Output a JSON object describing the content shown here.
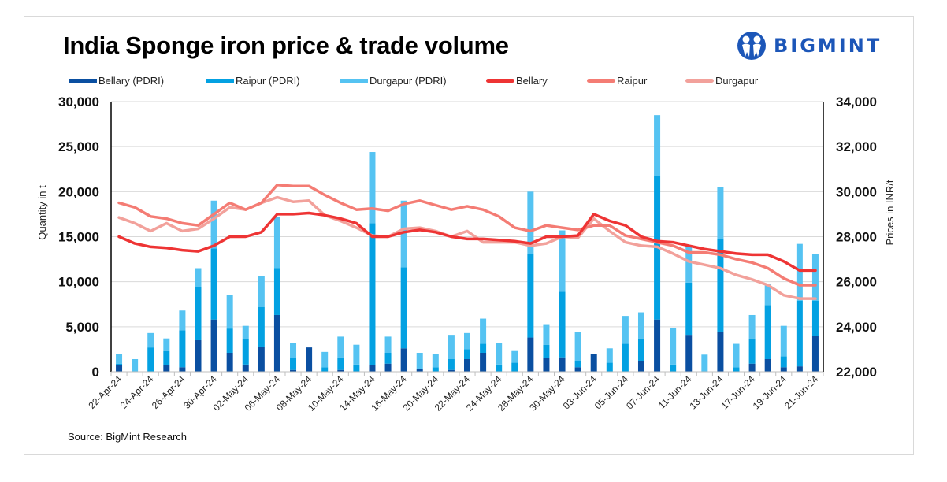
{
  "header": {
    "title": "India Sponge iron price & trade volume",
    "brand": "BIGMINT"
  },
  "source": "Source: BigMint Research",
  "chart_data": {
    "type": "bar+line",
    "title": "India Sponge iron price & trade volume",
    "ylabel": "Quantity in t",
    "y2label": "Prices in INR/t",
    "ylim": [
      0,
      30000
    ],
    "y2lim": [
      22000,
      34000
    ],
    "yticks": [
      "0",
      "5,000",
      "10,000",
      "15,000",
      "20,000",
      "25,000",
      "30,000"
    ],
    "y2ticks": [
      "22,000",
      "24,000",
      "26,000",
      "28,000",
      "30,000",
      "32,000",
      "34,000"
    ],
    "grid": true,
    "legend_position": "top",
    "colors": {
      "bellary_pdri": "#0a4fa1",
      "raipur_pdri": "#03a1e2",
      "durgapur_pdri": "#55c3f2",
      "bellary": "#ee3434",
      "raipur": "#f47c74",
      "durgapur": "#f2a19b"
    },
    "x_tick_labels": [
      "22-Apr-24",
      "24-Apr-24",
      "26-Apr-24",
      "30-Apr-24",
      "02-May-24",
      "06-May-24",
      "08-May-24",
      "10-May-24",
      "14-May-24",
      "16-May-24",
      "20-May-24",
      "22-May-24",
      "24-May-24",
      "28-May-24",
      "30-May-24",
      "03-Jun-24",
      "05-Jun-24",
      "07-Jun-24",
      "11-Jun-24",
      "13-Jun-24",
      "17-Jun-24",
      "19-Jun-24",
      "21-Jun-24"
    ],
    "bar_series": [
      {
        "name": "Bellary (PDRI)",
        "key": "bellary_pdri",
        "values": [
          700,
          0,
          0,
          700,
          500,
          3500,
          5800,
          2100,
          800,
          2800,
          6300,
          200,
          2700,
          0,
          200,
          0,
          700,
          900,
          2600,
          300,
          0,
          200,
          1400,
          2100,
          0,
          0,
          3800,
          1500,
          1600,
          500,
          2000,
          0,
          0,
          1200,
          5800,
          0,
          4100,
          0,
          4400,
          0,
          900,
          1400,
          500,
          600,
          4000
        ]
      },
      {
        "name": "Raipur (PDRI)",
        "key": "raipur_pdri",
        "values": [
          200,
          0,
          2700,
          1600,
          4100,
          5900,
          7900,
          2700,
          2800,
          4400,
          5200,
          1300,
          0,
          500,
          1400,
          800,
          15800,
          1200,
          9000,
          0,
          500,
          1200,
          1100,
          1000,
          800,
          1000,
          9300,
          1500,
          7300,
          700,
          0,
          1000,
          3100,
          2500,
          15900,
          800,
          5800,
          0,
          10300,
          500,
          2800,
          6000,
          1200,
          7300,
          3900
        ]
      },
      {
        "name": "Durgapur (PDRI)",
        "key": "durgapur_pdri",
        "values": [
          1100,
          1400,
          1600,
          1400,
          2200,
          2100,
          5300,
          3700,
          1500,
          3400,
          5700,
          1700,
          0,
          1700,
          2300,
          2200,
          7900,
          1800,
          7400,
          1800,
          1500,
          2700,
          1800,
          2800,
          2400,
          1300,
          6900,
          2200,
          6800,
          3200,
          0,
          1600,
          3100,
          2900,
          6800,
          4100,
          4100,
          1900,
          5800,
          2600,
          2600,
          2300,
          3400,
          6300,
          5200
        ]
      }
    ],
    "line_series": [
      {
        "name": "Bellary",
        "key": "bellary",
        "values": [
          28000,
          27700,
          27550,
          27500,
          27400,
          27350,
          27600,
          28000,
          28000,
          28200,
          29000,
          29000,
          29050,
          28950,
          28800,
          28600,
          28000,
          28000,
          28200,
          28300,
          28200,
          28000,
          27900,
          27900,
          27850,
          27800,
          27700,
          28000,
          28000,
          28050,
          29000,
          28700,
          28500,
          28000,
          27800,
          27750,
          27600,
          27450,
          27350,
          27250,
          27200,
          27200,
          26900,
          26500,
          26500
        ]
      },
      {
        "name": "Raipur",
        "key": "raipur",
        "values": [
          29500,
          29300,
          28900,
          28800,
          28600,
          28500,
          29000,
          29500,
          29200,
          29500,
          30300,
          30250,
          30250,
          29850,
          29500,
          29200,
          29250,
          29150,
          29450,
          29600,
          29400,
          29200,
          29350,
          29200,
          28900,
          28400,
          28250,
          28500,
          28400,
          28300,
          28500,
          28500,
          28050,
          27900,
          27750,
          27600,
          27300,
          27300,
          27200,
          27000,
          26850,
          26600,
          26150,
          25850,
          25850
        ]
      },
      {
        "name": "Durgapur",
        "key": "durgapur",
        "values": [
          28850,
          28600,
          28250,
          28600,
          28250,
          28350,
          28800,
          29300,
          29200,
          29500,
          29750,
          29550,
          29600,
          28950,
          28700,
          28400,
          28050,
          28000,
          28350,
          28400,
          28250,
          28000,
          28250,
          27750,
          27750,
          27750,
          27600,
          27700,
          28000,
          27950,
          28800,
          28250,
          27750,
          27600,
          27550,
          27250,
          26900,
          26750,
          26600,
          26300,
          26100,
          25850,
          25400,
          25250,
          25250
        ]
      }
    ]
  }
}
